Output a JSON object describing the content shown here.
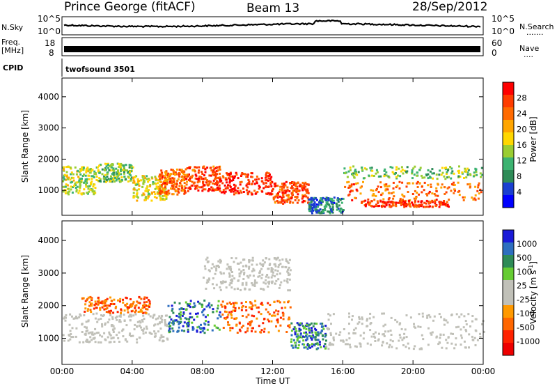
{
  "header": {
    "station": "Prince George (fitACF)",
    "beam": "Beam 13",
    "date": "28/Sep/2012"
  },
  "panels": {
    "nsky_label": "N.Sky",
    "nsky_ticks": [
      "10^5",
      "10^0"
    ],
    "nsearch_label": "N.Search",
    "nsearch_dots": ".......",
    "freq_label": "Freq.",
    "freq_unit": "[MHz]",
    "freq_ticks": [
      "18",
      "8"
    ],
    "nave_label": "Nave",
    "nave_dots": "....",
    "nave_ticks": [
      "60",
      "0"
    ],
    "cpid_label": "CPID",
    "cpid_value": "twofsound 3501"
  },
  "colors": {
    "power_scale": [
      "#0000ff",
      "#1a3fd0",
      "#2e8b57",
      "#3cb371",
      "#9acd32",
      "#ffd700",
      "#ffa500",
      "#ff6a00",
      "#ff3c00",
      "#ff0000"
    ],
    "velocity_scale": [
      "#1a1ad8",
      "#2e6fbf",
      "#2e8b57",
      "#66cc33",
      "#c0c0b8",
      "#c0c0b8",
      "#ff9900",
      "#ff6600",
      "#ff2200",
      "#ee0000"
    ]
  },
  "chart_data": [
    {
      "type": "heatmap",
      "name": "power",
      "ylabel": "Slant Range [km]",
      "yticks": [
        "1000",
        "2000",
        "3000",
        "4000"
      ],
      "ylim": [
        200,
        4600
      ],
      "xlim": [
        0,
        24
      ],
      "colorbar_label": "Power [dB]",
      "colorbar_ticks": [
        "4",
        "8",
        "12",
        "16",
        "20",
        "24",
        "28"
      ],
      "colorbar_range": [
        0,
        30
      ],
      "bands": [
        {
          "t0": 0.0,
          "t1": 2.0,
          "r0": 900,
          "r1": 1800,
          "level": 14
        },
        {
          "t0": 2.0,
          "t1": 4.0,
          "r0": 1300,
          "r1": 1900,
          "level": 12
        },
        {
          "t0": 4.0,
          "t1": 6.0,
          "r0": 700,
          "r1": 1500,
          "level": 16
        },
        {
          "t0": 5.5,
          "t1": 7.0,
          "r0": 900,
          "r1": 1700,
          "level": 24
        },
        {
          "t0": 7.0,
          "t1": 9.0,
          "r0": 1000,
          "r1": 1800,
          "level": 26
        },
        {
          "t0": 9.0,
          "t1": 12.0,
          "r0": 900,
          "r1": 1600,
          "level": 28
        },
        {
          "t0": 12.0,
          "t1": 14.0,
          "r0": 600,
          "r1": 1300,
          "level": 26
        },
        {
          "t0": 14.0,
          "t1": 16.0,
          "r0": 300,
          "r1": 800,
          "level": 6
        },
        {
          "t0": 16.0,
          "t1": 24.0,
          "r0": 1400,
          "r1": 1800,
          "level": 12
        },
        {
          "t0": 16.0,
          "t1": 24.0,
          "r0": 700,
          "r1": 1300,
          "level": 24
        },
        {
          "t0": 17.0,
          "t1": 22.0,
          "r0": 500,
          "r1": 700,
          "level": 28
        }
      ]
    },
    {
      "type": "heatmap",
      "name": "velocity",
      "ylabel": "Slant Range [km]",
      "yticks": [
        "1000",
        "2000",
        "3000",
        "4000"
      ],
      "ylim": [
        200,
        4600
      ],
      "xlim": [
        0,
        24
      ],
      "xlabel": "Time UT",
      "xticks": [
        "00:00",
        "04:00",
        "08:00",
        "12:00",
        "16:00",
        "20:00",
        "00:00"
      ],
      "colorbar_label": "Velocity [m s",
      "colorbar_label_sup": "-1",
      "colorbar_label_end": "]",
      "colorbar_ticks": [
        "1000",
        "500",
        "100",
        "25",
        "-25",
        "-100",
        "-500",
        "-1000"
      ],
      "bands": [
        {
          "t0": 0.0,
          "t1": 6.0,
          "r0": 900,
          "r1": 1800,
          "cls": "zero"
        },
        {
          "t0": 1.0,
          "t1": 5.0,
          "r0": 1800,
          "r1": 2300,
          "cls": "neg"
        },
        {
          "t0": 6.0,
          "t1": 9.0,
          "r0": 1200,
          "r1": 2200,
          "cls": "pos"
        },
        {
          "t0": 9.0,
          "t1": 13.0,
          "r0": 1200,
          "r1": 2200,
          "cls": "neg"
        },
        {
          "t0": 8.0,
          "t1": 13.0,
          "r0": 2500,
          "r1": 3500,
          "cls": "zero"
        },
        {
          "t0": 13.0,
          "t1": 15.0,
          "r0": 700,
          "r1": 1500,
          "cls": "pos"
        },
        {
          "t0": 15.0,
          "t1": 24.0,
          "r0": 700,
          "r1": 1800,
          "cls": "zero"
        }
      ]
    }
  ]
}
